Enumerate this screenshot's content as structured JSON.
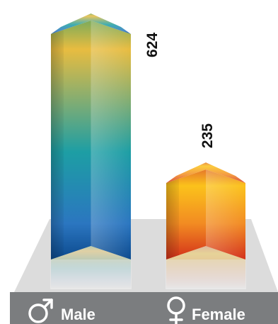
{
  "chart_data": {
    "type": "bar",
    "categories": [
      "Male",
      "Female"
    ],
    "values": [
      624,
      235
    ],
    "category_icons": [
      "male-symbol-icon",
      "female-symbol-icon"
    ],
    "colors": {
      "male": [
        "#7dab5a",
        "#e8bc40",
        "#1d9ea4",
        "#2b76c0",
        "#0c4a8e"
      ],
      "female": [
        "#e6792a",
        "#fbc21b",
        "#f28b22",
        "#e5501e",
        "#c42614"
      ],
      "floor": "#dcdcdc",
      "legend_bar": "#7b7d7f"
    }
  }
}
